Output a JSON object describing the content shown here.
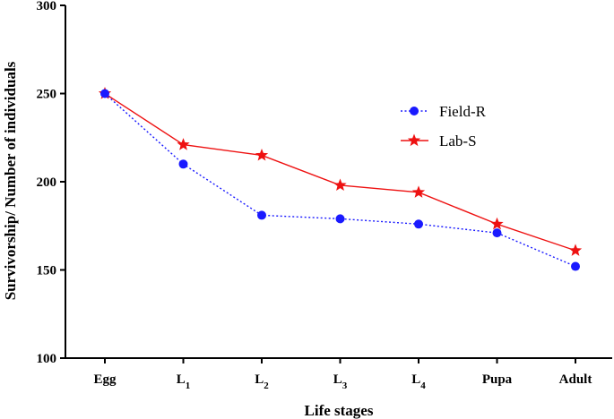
{
  "chart_data": {
    "type": "line",
    "title": "",
    "xlabel": "Life stages",
    "ylabel": "Survivorship/ Number of individuals",
    "categories": [
      {
        "base": "Egg",
        "sub": ""
      },
      {
        "base": "L",
        "sub": "1"
      },
      {
        "base": "L",
        "sub": "2"
      },
      {
        "base": "L",
        "sub": "3"
      },
      {
        "base": "L",
        "sub": "4"
      },
      {
        "base": "Pupa",
        "sub": ""
      },
      {
        "base": "Adult",
        "sub": ""
      }
    ],
    "ylim": [
      100,
      300
    ],
    "yticks": [
      100,
      150,
      200,
      250,
      300
    ],
    "grid": false,
    "legend_position": "right",
    "series": [
      {
        "name": "Field-R",
        "marker": "circle",
        "line": "dotted",
        "color": "#1a1aff",
        "values": [
          250,
          210,
          181,
          179,
          176,
          171,
          152
        ]
      },
      {
        "name": "Lab-S",
        "marker": "star",
        "line": "solid",
        "color": "#ee1111",
        "values": [
          250,
          221,
          215,
          198,
          194,
          176,
          161
        ]
      }
    ]
  }
}
